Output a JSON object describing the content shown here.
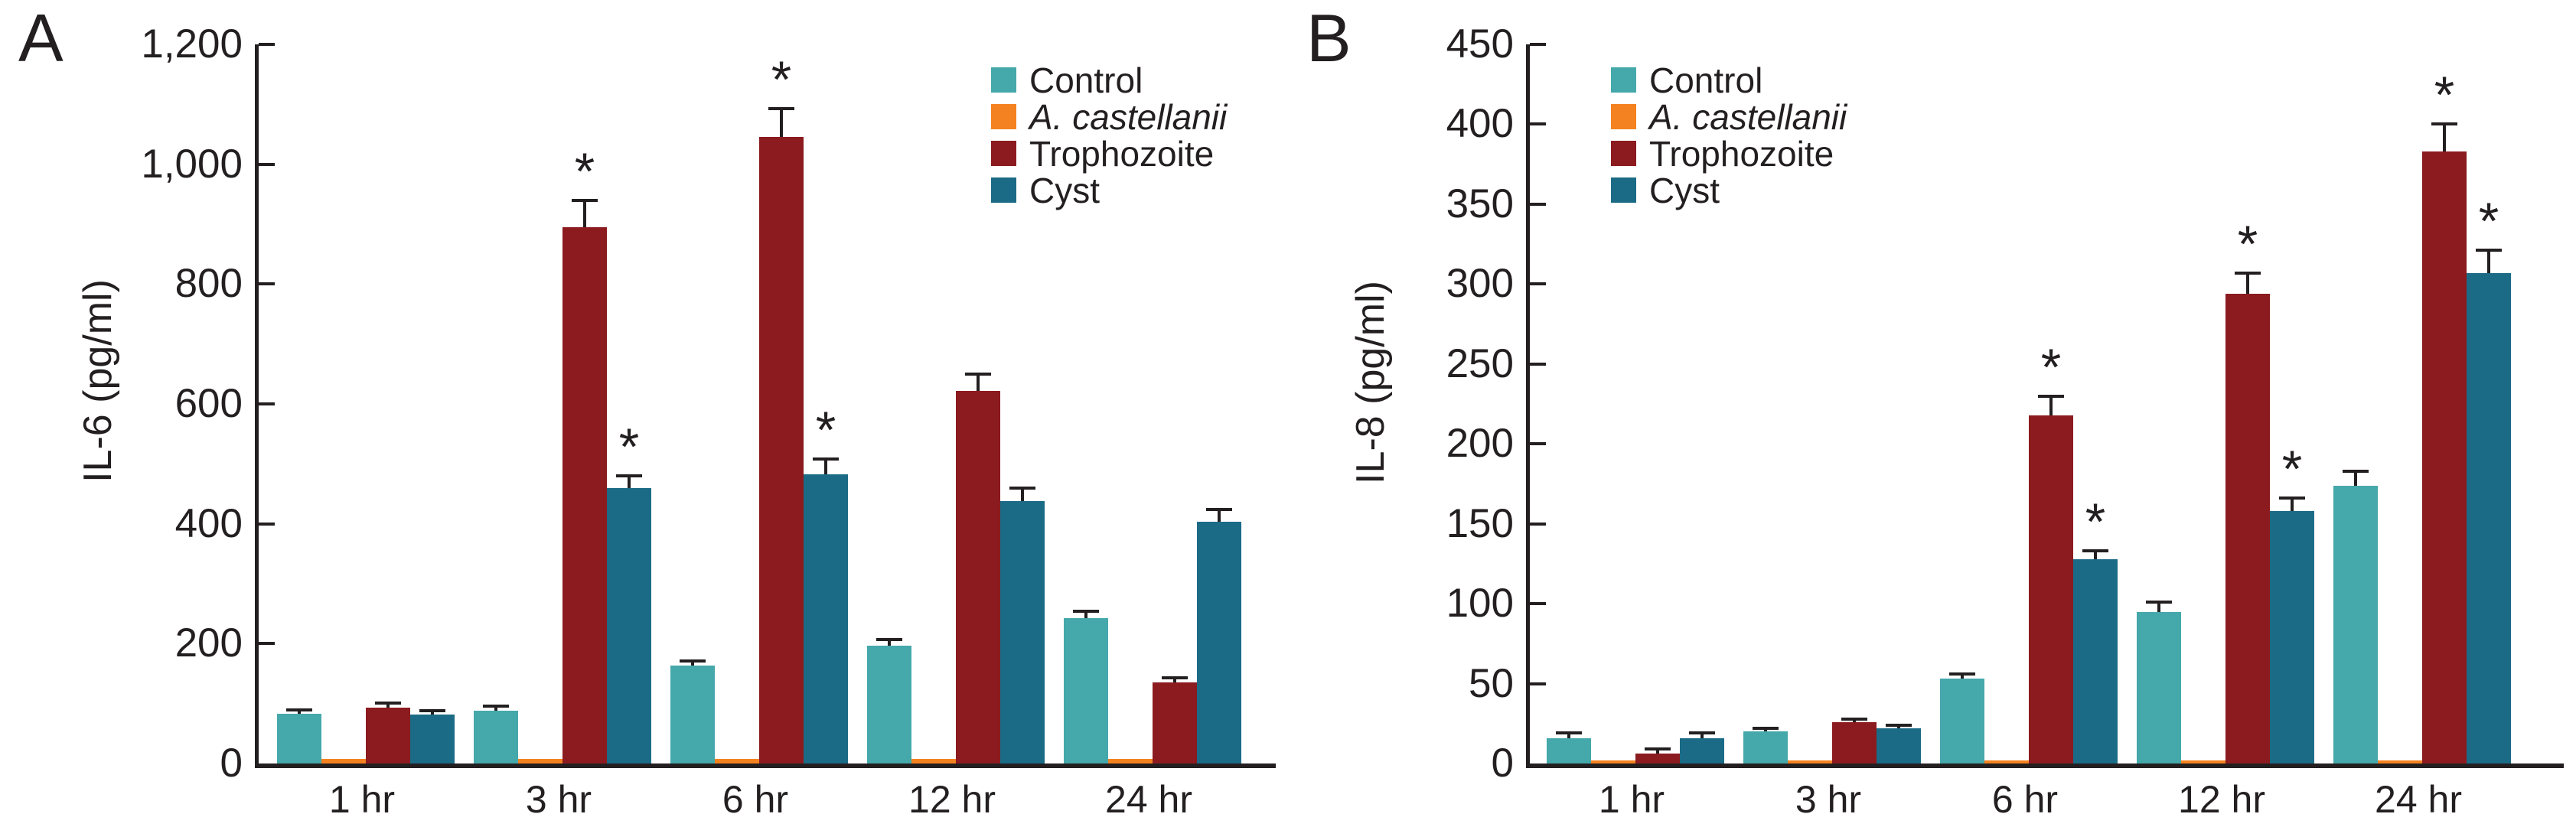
{
  "figure_type": "grouped-bar-chart-figure",
  "significance_marker": "*",
  "colors": {
    "control": "#45A8AB",
    "a_castellanii": "#F58220",
    "trophozoite": "#8B1B1F",
    "cyst": "#1B6B86",
    "ink": "#231F20",
    "background": "#FFFFFF"
  },
  "chart_data": [
    {
      "type": "bar",
      "panel_label": "A",
      "title": "",
      "xlabel": "",
      "ylabel": "IL-6 (pg/ml)",
      "ylim": [
        0,
        1200
      ],
      "ytick_labels": [
        "0",
        "200",
        "400",
        "600",
        "800",
        "1,000",
        "1,200"
      ],
      "grid": false,
      "legend_position": "top-right-inside",
      "categories": [
        "1 hr",
        "3 hr",
        "6 hr",
        "12 hr",
        "24 hr"
      ],
      "series": [
        {
          "name": "Control",
          "italic": false,
          "color": "#45A8AB",
          "values": [
            83,
            88,
            163,
            197,
            242
          ],
          "errors": [
            6,
            8,
            8,
            10,
            12
          ],
          "significant": [
            false,
            false,
            false,
            false,
            false
          ]
        },
        {
          "name": "A. castellanii",
          "italic": true,
          "color": "#F58220",
          "values": [
            8,
            8,
            8,
            8,
            8
          ],
          "errors": [
            0,
            0,
            0,
            0,
            0
          ],
          "significant": [
            false,
            false,
            false,
            false,
            false
          ]
        },
        {
          "name": "Trophozoite",
          "italic": false,
          "color": "#8B1B1F",
          "values": [
            93,
            895,
            1045,
            622,
            135
          ],
          "errors": [
            8,
            45,
            48,
            28,
            8
          ],
          "significant": [
            false,
            true,
            true,
            false,
            false
          ]
        },
        {
          "name": "Cyst",
          "italic": false,
          "color": "#1B6B86",
          "values": [
            82,
            460,
            483,
            438,
            404
          ],
          "errors": [
            6,
            20,
            25,
            22,
            20
          ],
          "significant": [
            false,
            true,
            true,
            false,
            false
          ]
        }
      ]
    },
    {
      "type": "bar",
      "panel_label": "B",
      "title": "",
      "xlabel": "",
      "ylabel": "IL-8 (pg/ml)",
      "ylim": [
        0,
        450
      ],
      "ytick_labels": [
        "0",
        "50",
        "100",
        "150",
        "200",
        "250",
        "300",
        "350",
        "400",
        "450"
      ],
      "grid": false,
      "legend_position": "top-left-inside",
      "categories": [
        "1 hr",
        "3 hr",
        "6 hr",
        "12 hr",
        "24 hr"
      ],
      "series": [
        {
          "name": "Control",
          "italic": false,
          "color": "#45A8AB",
          "values": [
            16,
            20,
            53,
            95,
            174
          ],
          "errors": [
            3,
            2,
            3,
            6,
            9
          ],
          "significant": [
            false,
            false,
            false,
            false,
            false
          ]
        },
        {
          "name": "A. castellanii",
          "italic": true,
          "color": "#F58220",
          "values": [
            2,
            2,
            2,
            2,
            2
          ],
          "errors": [
            0,
            0,
            0,
            0,
            0
          ],
          "significant": [
            false,
            false,
            false,
            false,
            false
          ]
        },
        {
          "name": "Trophozoite",
          "italic": false,
          "color": "#8B1B1F",
          "values": [
            6,
            26,
            218,
            294,
            383
          ],
          "errors": [
            3,
            2,
            12,
            13,
            17
          ],
          "significant": [
            false,
            false,
            true,
            true,
            true
          ]
        },
        {
          "name": "Cyst",
          "italic": false,
          "color": "#1B6B86",
          "values": [
            16,
            22,
            128,
            158,
            307
          ],
          "errors": [
            3,
            2,
            5,
            8,
            14
          ],
          "significant": [
            false,
            false,
            true,
            true,
            true
          ]
        }
      ]
    }
  ]
}
